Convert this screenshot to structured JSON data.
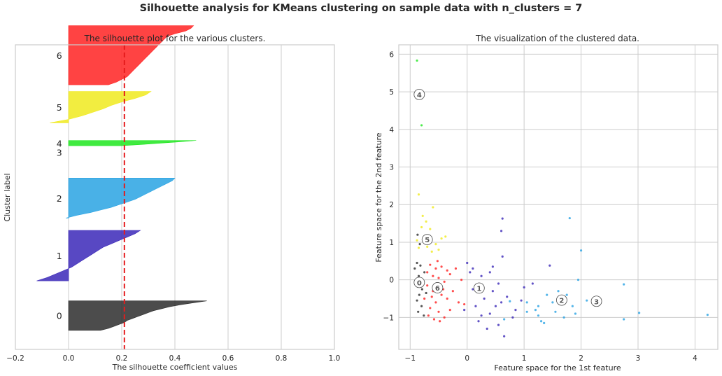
{
  "suptitle": "Silhouette analysis for KMeans clustering on sample data with n_clusters = 7",
  "chart_data": [
    {
      "type": "area",
      "title": "The silhouette plot for the various clusters.",
      "xlabel": "The silhouette coefficient values",
      "ylabel": "Cluster label",
      "xlim": [
        -0.2,
        1.0
      ],
      "ylim": [
        0,
        160
      ],
      "xticks": [
        -0.2,
        0.0,
        0.2,
        0.4,
        0.6,
        0.8,
        1.0
      ],
      "xtick_labels": [
        "−0.2",
        "0.0",
        "0.2",
        "0.4",
        "0.6",
        "0.8",
        "1.0"
      ],
      "grid": true,
      "average_silhouette_score": 0.21,
      "average_line_color": "#e41a1c",
      "clusters": [
        {
          "label": "0",
          "y_lower": 10,
          "color": "#2d2d2d",
          "values": [
            0.52,
            0.47,
            0.42,
            0.38,
            0.35,
            0.32,
            0.3,
            0.28,
            0.26,
            0.24,
            0.22,
            0.21,
            0.19,
            0.17,
            0.15,
            0.12
          ]
        },
        {
          "label": "1",
          "y_lower": 36,
          "color": "#3b28b8",
          "values": [
            0.27,
            0.25,
            0.22,
            0.19,
            0.16,
            0.13,
            0.11,
            0.09,
            0.07,
            0.05,
            0.03,
            0.01,
            -0.02,
            -0.05,
            -0.08,
            -0.12
          ]
        },
        {
          "label": "2",
          "y_lower": 69,
          "color": "#29a3e3",
          "values": [
            0.4,
            0.39,
            0.37,
            0.35,
            0.33,
            0.31,
            0.29,
            0.27,
            0.25,
            0.22,
            0.19,
            0.16,
            0.12,
            0.08,
            0.03,
            -0.01
          ]
        },
        {
          "label": "3",
          "y_lower": 100,
          "color": "#c5c5c5",
          "values": []
        },
        {
          "label": "4",
          "y_lower": 107,
          "color": "#1fe61f",
          "values": [
            0.48,
            0.42,
            0.35,
            0.28,
            0.2
          ]
        },
        {
          "label": "5",
          "y_lower": 119,
          "color": "#f0ea1e",
          "values": [
            0.31,
            0.29,
            0.25,
            0.2,
            0.16,
            0.13,
            0.09,
            0.05,
            0.0,
            -0.07
          ]
        },
        {
          "label": "6",
          "y_lower": 139,
          "color": "#ff2222",
          "values": [
            0.47,
            0.46,
            0.44,
            0.4,
            0.37,
            0.36,
            0.35,
            0.34,
            0.33,
            0.32,
            0.31,
            0.3,
            0.29,
            0.28,
            0.27,
            0.26,
            0.25,
            0.24,
            0.23,
            0.22,
            0.2,
            0.18,
            0.15
          ]
        }
      ]
    },
    {
      "type": "scatter",
      "title": "The visualization of the clustered data.",
      "xlabel": "Feature space for the 1st feature",
      "ylabel": "Feature space for the 2nd feature",
      "xlim": [
        -1.2,
        4.4
      ],
      "ylim": [
        -1.85,
        6.25
      ],
      "xticks": [
        -1,
        0,
        1,
        2,
        3,
        4
      ],
      "xtick_labels": [
        "−1",
        "0",
        "1",
        "2",
        "3",
        "4"
      ],
      "yticks": [
        -1,
        0,
        1,
        2,
        3,
        4,
        5,
        6
      ],
      "ytick_labels": [
        "−1",
        "0",
        "1",
        "2",
        "3",
        "4",
        "5",
        "6"
      ],
      "grid": true,
      "centers": [
        {
          "label": "0",
          "x": -0.84,
          "y": -0.07
        },
        {
          "label": "1",
          "x": 0.21,
          "y": -0.22
        },
        {
          "label": "2",
          "x": 1.66,
          "y": -0.54
        },
        {
          "label": "3",
          "x": 2.27,
          "y": -0.57
        },
        {
          "label": "4",
          "x": -0.84,
          "y": 4.93
        },
        {
          "label": "5",
          "x": -0.7,
          "y": 1.07
        },
        {
          "label": "6",
          "x": -0.52,
          "y": -0.21
        }
      ],
      "series": [
        {
          "cluster": "0",
          "color": "#2d2d2d",
          "points": [
            [
              -0.88,
              0.45
            ],
            [
              -0.82,
              0.38
            ],
            [
              -0.75,
              0.2
            ],
            [
              -0.85,
              0.1
            ],
            [
              -0.9,
              -0.05
            ],
            [
              -0.79,
              -0.25
            ],
            [
              -0.84,
              -0.4
            ],
            [
              -0.88,
              -0.55
            ],
            [
              -0.8,
              -0.7
            ],
            [
              -0.86,
              -0.85
            ],
            [
              -0.72,
              -0.35
            ],
            [
              -0.92,
              0.3
            ],
            [
              -0.76,
              -0.95
            ],
            [
              -0.83,
              0.95
            ],
            [
              -0.87,
              1.2
            ]
          ]
        },
        {
          "cluster": "1",
          "color": "#3b28b8",
          "points": [
            [
              0.0,
              0.45
            ],
            [
              0.1,
              0.3
            ],
            [
              0.25,
              0.1
            ],
            [
              0.4,
              0.2
            ],
            [
              0.45,
              0.35
            ],
            [
              0.55,
              -0.1
            ],
            [
              0.3,
              -0.5
            ],
            [
              0.15,
              -0.7
            ],
            [
              0.4,
              -0.9
            ],
            [
              0.6,
              -0.6
            ],
            [
              0.7,
              -0.45
            ],
            [
              0.2,
              -1.1
            ],
            [
              0.35,
              -1.3
            ],
            [
              0.55,
              -1.2
            ],
            [
              0.65,
              -1.5
            ],
            [
              0.6,
              1.3
            ],
            [
              0.62,
              1.63
            ],
            [
              0.62,
              0.62
            ],
            [
              0.85,
              -0.8
            ],
            [
              0.95,
              -0.55
            ],
            [
              1.0,
              -0.2
            ],
            [
              1.15,
              -0.1
            ],
            [
              0.8,
              -1.0
            ],
            [
              1.45,
              0.38
            ],
            [
              0.45,
              -0.3
            ],
            [
              0.25,
              -0.95
            ],
            [
              -0.05,
              -0.8
            ],
            [
              0.1,
              -0.25
            ],
            [
              0.5,
              -0.7
            ],
            [
              0.05,
              0.2
            ]
          ]
        },
        {
          "cluster": "2",
          "color": "#29a3e3",
          "points": [
            [
              1.05,
              -0.6
            ],
            [
              1.2,
              -0.8
            ],
            [
              1.3,
              -1.1
            ],
            [
              1.25,
              -0.7
            ],
            [
              1.4,
              -0.4
            ],
            [
              1.5,
              -0.6
            ],
            [
              1.6,
              -0.3
            ],
            [
              1.75,
              -0.4
            ],
            [
              1.85,
              -0.7
            ],
            [
              1.9,
              -0.9
            ],
            [
              1.95,
              0.0
            ],
            [
              2.0,
              0.78
            ],
            [
              1.8,
              1.64
            ],
            [
              1.7,
              -1.0
            ],
            [
              2.1,
              -0.55
            ],
            [
              2.75,
              -0.12
            ],
            [
              3.02,
              -0.88
            ],
            [
              2.75,
              -1.05
            ],
            [
              4.22,
              -0.93
            ],
            [
              1.35,
              -1.15
            ],
            [
              1.05,
              -0.85
            ],
            [
              0.65,
              -1.05
            ],
            [
              0.75,
              -0.57
            ],
            [
              1.55,
              -0.85
            ],
            [
              1.25,
              -0.95
            ]
          ]
        },
        {
          "cluster": "4",
          "color": "#1fe61f",
          "points": [
            [
              -0.88,
              5.83
            ],
            [
              -0.8,
              4.11
            ]
          ]
        },
        {
          "cluster": "5",
          "color": "#f0ea1e",
          "points": [
            [
              -0.85,
              2.27
            ],
            [
              -0.6,
              1.93
            ],
            [
              -0.78,
              1.7
            ],
            [
              -0.72,
              1.55
            ],
            [
              -0.8,
              1.4
            ],
            [
              -0.65,
              1.35
            ],
            [
              -0.75,
              1.15
            ],
            [
              -0.88,
              1.05
            ],
            [
              -0.55,
              0.95
            ],
            [
              -0.45,
              1.1
            ],
            [
              -0.38,
              1.15
            ],
            [
              -0.7,
              0.88
            ],
            [
              -0.62,
              0.75
            ],
            [
              -0.85,
              0.85
            ],
            [
              -0.5,
              0.8
            ]
          ]
        },
        {
          "cluster": "6",
          "color": "#ff2222",
          "points": [
            [
              -0.65,
              0.4
            ],
            [
              -0.55,
              0.3
            ],
            [
              -0.45,
              0.35
            ],
            [
              -0.35,
              0.25
            ],
            [
              -0.6,
              0.1
            ],
            [
              -0.5,
              0.05
            ],
            [
              -0.4,
              -0.05
            ],
            [
              -0.3,
              0.15
            ],
            [
              -0.7,
              -0.15
            ],
            [
              -0.6,
              -0.3
            ],
            [
              -0.45,
              -0.4
            ],
            [
              -0.35,
              -0.5
            ],
            [
              -0.55,
              -0.6
            ],
            [
              -0.65,
              -0.75
            ],
            [
              -0.5,
              -0.85
            ],
            [
              -0.4,
              -1.0
            ],
            [
              -0.75,
              -0.5
            ],
            [
              -0.25,
              -0.3
            ],
            [
              -0.15,
              -0.6
            ],
            [
              -0.1,
              0.0
            ],
            [
              -0.2,
              0.3
            ],
            [
              -0.3,
              -0.8
            ],
            [
              -0.58,
              -1.05
            ],
            [
              -0.48,
              -1.1
            ],
            [
              -0.7,
              0.2
            ],
            [
              -0.62,
              -0.45
            ],
            [
              -0.52,
              0.5
            ],
            [
              -0.42,
              -0.25
            ],
            [
              -0.05,
              -0.65
            ],
            [
              -0.68,
              -0.95
            ]
          ]
        }
      ]
    }
  ]
}
